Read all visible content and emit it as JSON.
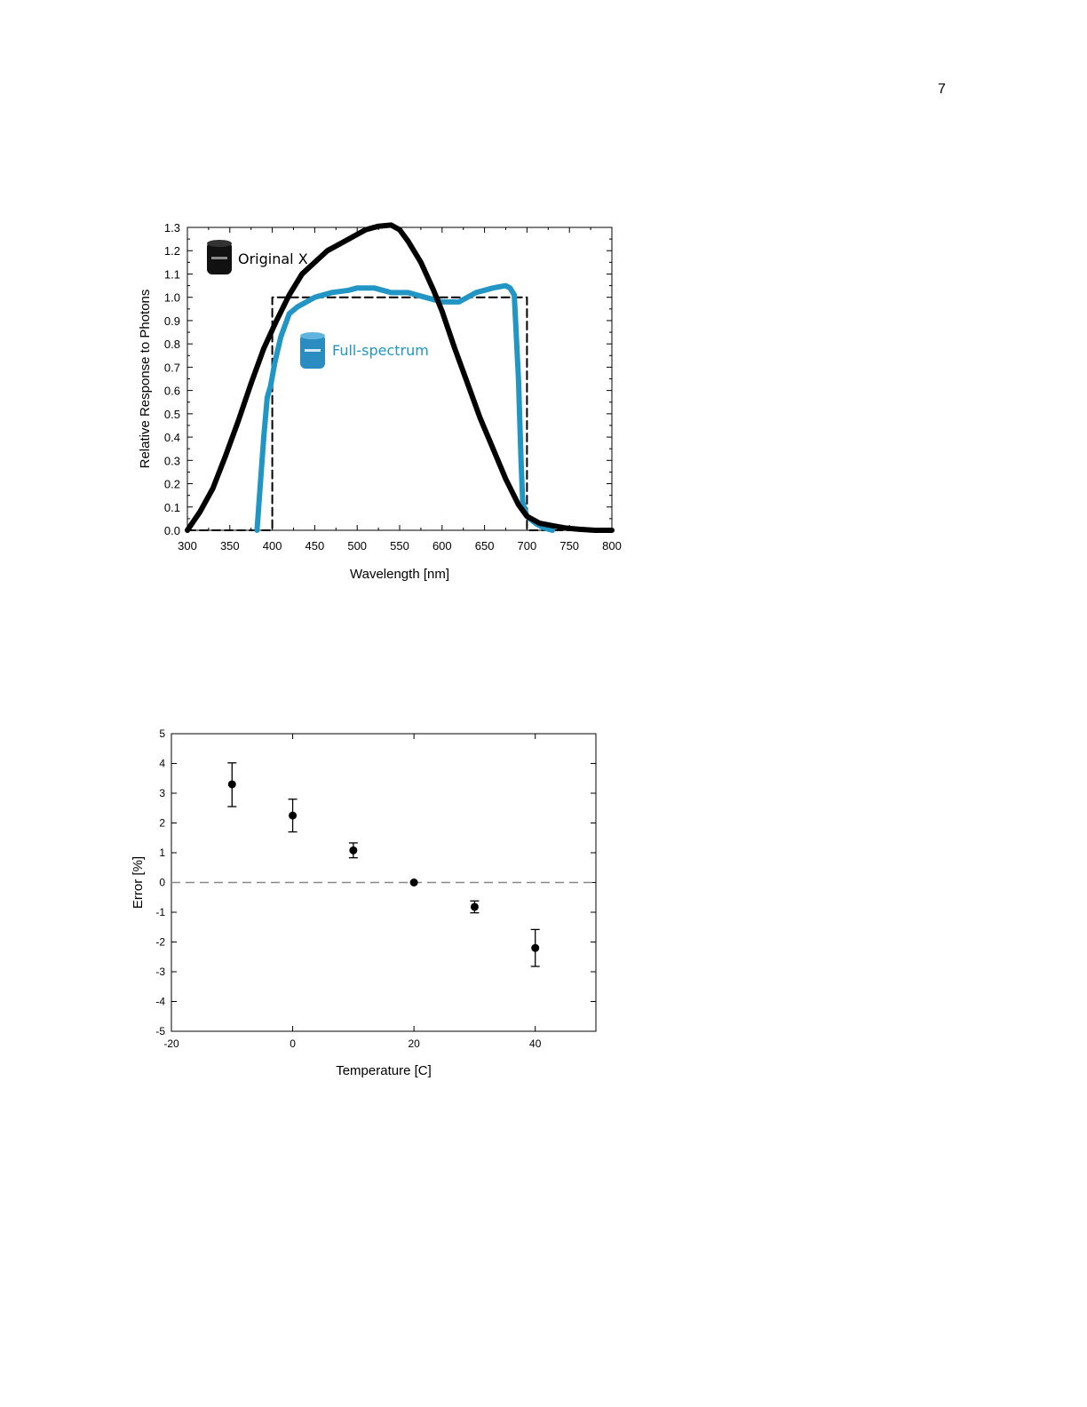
{
  "page": {
    "number": "7"
  },
  "chart_data": [
    {
      "type": "line",
      "xlabel": "Wavelength [nm]",
      "ylabel": "Relative Response to Photons",
      "xlim": [
        300,
        800
      ],
      "ylim": [
        0,
        1.3
      ],
      "x_ticks": [
        "300",
        "350",
        "400",
        "450",
        "500",
        "550",
        "600",
        "650",
        "700",
        "750",
        "800"
      ],
      "y_ticks": [
        "0.0",
        "0.1",
        "0.2",
        "0.3",
        "0.4",
        "0.5",
        "0.6",
        "0.7",
        "0.8",
        "0.9",
        "1.0",
        "1.1",
        "1.2",
        "1.3"
      ],
      "grid": false,
      "series": [
        {
          "name": "Original X",
          "color": "#000000",
          "icon": "black-sensor-icon",
          "x": [
            300,
            315,
            330,
            345,
            360,
            375,
            390,
            405,
            420,
            435,
            450,
            465,
            480,
            495,
            510,
            525,
            540,
            550,
            560,
            575,
            590,
            600,
            615,
            630,
            645,
            660,
            675,
            690,
            700,
            715,
            730,
            745,
            760,
            780,
            800
          ],
          "y": [
            0,
            0.08,
            0.18,
            0.32,
            0.47,
            0.63,
            0.78,
            0.9,
            1.01,
            1.1,
            1.15,
            1.2,
            1.23,
            1.26,
            1.29,
            1.305,
            1.31,
            1.29,
            1.24,
            1.15,
            1.03,
            0.94,
            0.78,
            0.63,
            0.48,
            0.35,
            0.22,
            0.11,
            0.06,
            0.03,
            0.02,
            0.01,
            0.005,
            0,
            0
          ]
        },
        {
          "name": "Full-spectrum",
          "color": "#2196c4",
          "icon": "blue-sensor-icon",
          "x": [
            382,
            386,
            390,
            394,
            398,
            403,
            410,
            420,
            430,
            450,
            470,
            490,
            500,
            520,
            530,
            540,
            560,
            580,
            600,
            620,
            640,
            660,
            675,
            680,
            685,
            690,
            693,
            695,
            700,
            710,
            720,
            730
          ],
          "y": [
            0,
            0.2,
            0.4,
            0.57,
            0.62,
            0.72,
            0.83,
            0.93,
            0.96,
            1.0,
            1.02,
            1.03,
            1.04,
            1.04,
            1.03,
            1.02,
            1.02,
            1.0,
            0.98,
            0.98,
            1.02,
            1.04,
            1.05,
            1.04,
            1.01,
            0.65,
            0.3,
            0.12,
            0.06,
            0.03,
            0.01,
            0
          ]
        },
        {
          "name": "",
          "color": "#000000",
          "dashed": true,
          "x": [
            300,
            400,
            400,
            700,
            700,
            800
          ],
          "y": [
            0,
            0,
            1.0,
            1.0,
            0,
            0
          ]
        }
      ],
      "legend": [
        {
          "label": "Original X",
          "color": "#000000"
        },
        {
          "label": "Full-spectrum",
          "color": "#2196c4"
        }
      ]
    },
    {
      "type": "scatter",
      "xlabel": "Temperature [C]",
      "ylabel": "Error [%]",
      "xlim": [
        -20,
        50
      ],
      "ylim": [
        -5,
        5
      ],
      "x_ticks": [
        "-20",
        "0",
        "20",
        "40"
      ],
      "y_ticks": [
        "-5",
        "-4",
        "-3",
        "-2",
        "-1",
        "0",
        "1",
        "2",
        "3",
        "4",
        "5"
      ],
      "grid": false,
      "reference_line": {
        "y": 0,
        "style": "dashed",
        "color": "#888888"
      },
      "series": [
        {
          "name": "",
          "color": "#000000",
          "x": [
            -10,
            0,
            10,
            20,
            30,
            40
          ],
          "y": [
            3.3,
            2.25,
            1.08,
            0.0,
            -0.82,
            -2.2
          ],
          "err_low": [
            0.75,
            0.55,
            0.25,
            0.0,
            0.2,
            0.62
          ],
          "err_high": [
            0.72,
            0.55,
            0.25,
            0.0,
            0.2,
            0.62
          ]
        }
      ]
    }
  ]
}
